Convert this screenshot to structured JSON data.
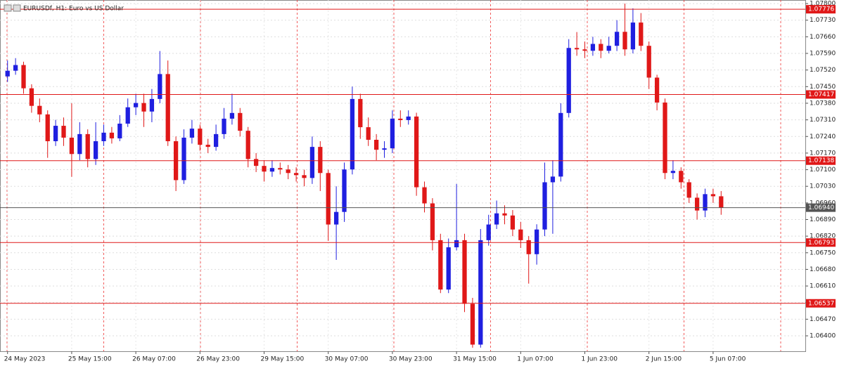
{
  "chart_data": {
    "type": "candlestick",
    "title": "EURUSDf, H1:  Euro vs US Dollar",
    "up_color": "#1f1fe0",
    "down_color": "#e01818",
    "grid": true,
    "open": [
      1.07493,
      1.07517,
      1.07541,
      1.07443,
      1.07369,
      1.07333,
      1.0722,
      1.07285,
      1.07235,
      1.07166,
      1.0725,
      1.07145,
      1.0722,
      1.07256,
      1.07232,
      1.07294,
      1.07363,
      1.07381,
      1.07345,
      1.07398,
      1.07503,
      1.0722,
      1.07056,
      1.07235,
      1.07273,
      1.07205,
      1.07196,
      1.0725,
      1.07315,
      1.07339,
      1.07264,
      1.07145,
      1.07116,
      1.07092,
      1.07107,
      1.07101,
      1.07086,
      1.07077,
      1.07065,
      1.07196,
      1.07086,
      1.06869,
      1.06922,
      1.07101,
      1.07398,
      1.07279,
      1.07226,
      1.07184,
      1.0719,
      1.07315,
      1.07309,
      1.07324,
      1.07026,
      1.06958,
      1.06803,
      1.06595,
      1.06773,
      1.06803,
      1.06535,
      1.06363,
      1.06803,
      1.06869,
      1.06916,
      1.06907,
      1.06848,
      1.06803,
      1.06744,
      1.06848,
      1.07047,
      1.07071,
      1.07339,
      1.07613,
      1.07607,
      1.07601,
      1.0763,
      1.07601,
      1.07622,
      1.07681,
      1.07607,
      1.0772,
      1.07622,
      1.07488,
      1.07383,
      1.07086,
      1.07095,
      1.07047,
      1.06982,
      1.06928,
      1.06997,
      1.06988
    ],
    "high": [
      1.0756,
      1.0757,
      1.07555,
      1.0746,
      1.074,
      1.0735,
      1.0731,
      1.0732,
      1.0738,
      1.073,
      1.0727,
      1.073,
      1.0729,
      1.0728,
      1.0733,
      1.074,
      1.0742,
      1.0742,
      1.0744,
      1.076,
      1.0756,
      1.0724,
      1.0727,
      1.0731,
      1.0729,
      1.0723,
      1.0729,
      1.0736,
      1.0742,
      1.0736,
      1.0728,
      1.0717,
      1.0714,
      1.0714,
      1.0713,
      1.0712,
      1.0711,
      1.071,
      1.0724,
      1.0722,
      1.071,
      1.0703,
      1.0713,
      1.0745,
      1.0742,
      1.0732,
      1.0725,
      1.0722,
      1.0735,
      1.0735,
      1.0735,
      1.0734,
      1.0705,
      1.0698,
      1.0683,
      1.0681,
      1.0704,
      1.0683,
      1.0656,
      1.0685,
      1.0691,
      1.0697,
      1.0695,
      1.0693,
      1.0688,
      1.0682,
      1.0687,
      1.0713,
      1.0714,
      1.0738,
      1.0765,
      1.0768,
      1.0764,
      1.0766,
      1.0765,
      1.0766,
      1.0773,
      1.078,
      1.0778,
      1.0776,
      1.0764,
      1.075,
      1.074,
      1.0714,
      1.0711,
      1.0706,
      1.07,
      1.0702,
      1.0702,
      1.0701
    ],
    "low": [
      1.0747,
      1.075,
      1.0742,
      1.0734,
      1.073,
      1.0715,
      1.072,
      1.072,
      1.0707,
      1.0714,
      1.0711,
      1.0712,
      1.072,
      1.0721,
      1.0722,
      1.0728,
      1.0733,
      1.0728,
      1.073,
      1.0738,
      1.072,
      1.0701,
      1.0704,
      1.0721,
      1.0718,
      1.0717,
      1.0718,
      1.0723,
      1.0729,
      1.0724,
      1.0711,
      1.0709,
      1.0705,
      1.0707,
      1.0708,
      1.0706,
      1.0705,
      1.0703,
      1.0704,
      1.0701,
      1.068,
      1.0672,
      1.0688,
      1.0708,
      1.0723,
      1.072,
      1.0714,
      1.0715,
      1.0717,
      1.0728,
      1.0729,
      1.0699,
      1.0692,
      1.0676,
      1.0658,
      1.0658,
      1.0676,
      1.065,
      1.0635,
      1.0635,
      1.0678,
      1.0685,
      1.0687,
      1.0682,
      1.0677,
      1.0662,
      1.067,
      1.0682,
      1.0683,
      1.0705,
      1.0732,
      1.0758,
      1.0757,
      1.0758,
      1.0757,
      1.0759,
      1.076,
      1.0758,
      1.0759,
      1.076,
      1.0744,
      1.0735,
      1.0706,
      1.0706,
      1.0702,
      1.0696,
      1.0689,
      1.069,
      1.0696,
      1.0691
    ],
    "close": [
      1.07517,
      1.07541,
      1.07443,
      1.07369,
      1.07333,
      1.0722,
      1.07285,
      1.07235,
      1.07166,
      1.0725,
      1.07145,
      1.0722,
      1.07256,
      1.07232,
      1.07294,
      1.07363,
      1.07381,
      1.07345,
      1.07398,
      1.07503,
      1.0722,
      1.07056,
      1.07235,
      1.07273,
      1.07205,
      1.07196,
      1.0725,
      1.07315,
      1.07339,
      1.07264,
      1.07145,
      1.07116,
      1.07092,
      1.07107,
      1.07101,
      1.07086,
      1.07077,
      1.07065,
      1.07196,
      1.07086,
      1.06869,
      1.06922,
      1.07101,
      1.07398,
      1.07279,
      1.07226,
      1.07184,
      1.0719,
      1.07315,
      1.07309,
      1.07324,
      1.07026,
      1.06958,
      1.06803,
      1.06595,
      1.06773,
      1.06803,
      1.06535,
      1.06363,
      1.06803,
      1.06869,
      1.06916,
      1.06907,
      1.06848,
      1.06803,
      1.06744,
      1.06848,
      1.07047,
      1.07071,
      1.07339,
      1.07613,
      1.07607,
      1.07601,
      1.0763,
      1.07601,
      1.07622,
      1.07681,
      1.07607,
      1.0772,
      1.07622,
      1.07488,
      1.07383,
      1.07086,
      1.07095,
      1.07047,
      1.06982,
      1.06928,
      1.06997,
      1.06988,
      1.0694
    ],
    "xlim": [
      -0.94,
      99.5
    ],
    "xticks": [
      {
        "value": 0,
        "label": "24 May 2023"
      },
      {
        "value": 8,
        "label": "25 May 15:00"
      },
      {
        "value": 16,
        "label": "26 May 07:00"
      },
      {
        "value": 24,
        "label": "26 May 23:00"
      },
      {
        "value": 32,
        "label": "29 May 15:00"
      },
      {
        "value": 40,
        "label": "30 May 07:00"
      },
      {
        "value": 48,
        "label": "30 May 23:00"
      },
      {
        "value": 56,
        "label": "31 May 15:00"
      },
      {
        "value": 64,
        "label": "1 Jun 07:00"
      },
      {
        "value": 72,
        "label": "1 Jun 23:00"
      },
      {
        "value": 80,
        "label": "2 Jun 15:00"
      },
      {
        "value": 88,
        "label": "5 Jun 07:00"
      }
    ],
    "ylim": [
      1.06335,
      1.07815
    ],
    "yticks": [
      {
        "value": 1.078,
        "label": "1.07800"
      },
      {
        "value": 1.0773,
        "label": "1.07730"
      },
      {
        "value": 1.0766,
        "label": "1.07660"
      },
      {
        "value": 1.0759,
        "label": "1.07590"
      },
      {
        "value": 1.0752,
        "label": "1.07520"
      },
      {
        "value": 1.0745,
        "label": "1.07450"
      },
      {
        "value": 1.0738,
        "label": "1.07380"
      },
      {
        "value": 1.0731,
        "label": "1.07310"
      },
      {
        "value": 1.0724,
        "label": "1.07240"
      },
      {
        "value": 1.0717,
        "label": "1.07170"
      },
      {
        "value": 1.071,
        "label": "1.07100"
      },
      {
        "value": 1.0703,
        "label": "1.07030"
      },
      {
        "value": 1.0696,
        "label": "1.06960"
      },
      {
        "value": 1.0689,
        "label": "1.06890"
      },
      {
        "value": 1.0682,
        "label": "1.06820"
      },
      {
        "value": 1.0675,
        "label": "1.06750"
      },
      {
        "value": 1.0668,
        "label": "1.06680"
      },
      {
        "value": 1.0661,
        "label": "1.06610"
      },
      {
        "value": 1.0654,
        "label": "1.06540"
      },
      {
        "value": 1.0647,
        "label": "1.06470"
      },
      {
        "value": 1.064,
        "label": "1.06400"
      }
    ],
    "hlines": [
      {
        "value": 1.07776,
        "label": "1.07776",
        "color": "#e01818"
      },
      {
        "value": 1.07417,
        "label": "1.07417",
        "color": "#e01818"
      },
      {
        "value": 1.07138,
        "label": "1.07138",
        "color": "#e01818"
      },
      {
        "value": 1.0694,
        "label": "1.06940",
        "color": "#555555"
      },
      {
        "value": 1.06793,
        "label": "1.06793",
        "color": "#e01818"
      },
      {
        "value": 1.06537,
        "label": "1.06537",
        "color": "#e01818"
      }
    ]
  }
}
